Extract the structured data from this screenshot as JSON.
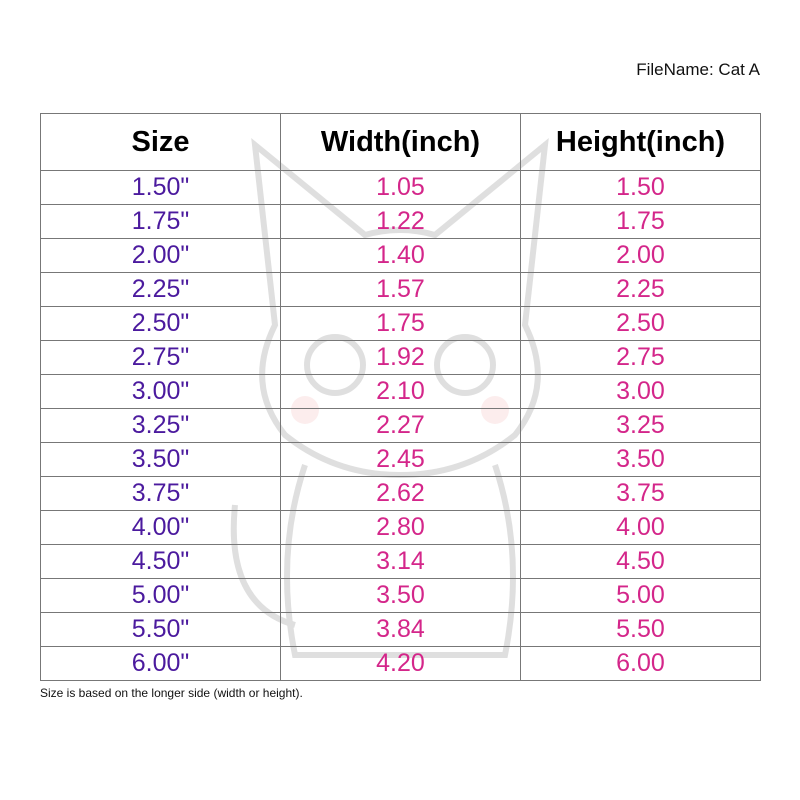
{
  "filename": "FileName: Cat A",
  "colors": {
    "size_text": "#4b1a9e",
    "dimension_text": "#d4268a",
    "grid": "#777777"
  },
  "watermark": "cat-illustration",
  "table": {
    "headers": [
      "Size",
      "Width(inch)",
      "Height(inch)"
    ],
    "rows": [
      [
        "1.50\"",
        "1.05",
        "1.50"
      ],
      [
        "1.75\"",
        "1.22",
        "1.75"
      ],
      [
        "2.00\"",
        "1.40",
        "2.00"
      ],
      [
        "2.25\"",
        "1.57",
        "2.25"
      ],
      [
        "2.50\"",
        "1.75",
        "2.50"
      ],
      [
        "2.75\"",
        "1.92",
        "2.75"
      ],
      [
        "3.00\"",
        "2.10",
        "3.00"
      ],
      [
        "3.25\"",
        "2.27",
        "3.25"
      ],
      [
        "3.50\"",
        "2.45",
        "3.50"
      ],
      [
        "3.75\"",
        "2.62",
        "3.75"
      ],
      [
        "4.00\"",
        "2.80",
        "4.00"
      ],
      [
        "4.50\"",
        "3.14",
        "4.50"
      ],
      [
        "5.00\"",
        "3.50",
        "5.00"
      ],
      [
        "5.50\"",
        "3.84",
        "5.50"
      ],
      [
        "6.00\"",
        "4.20",
        "6.00"
      ]
    ]
  },
  "note": "Size is based on the longer side (width or height)."
}
